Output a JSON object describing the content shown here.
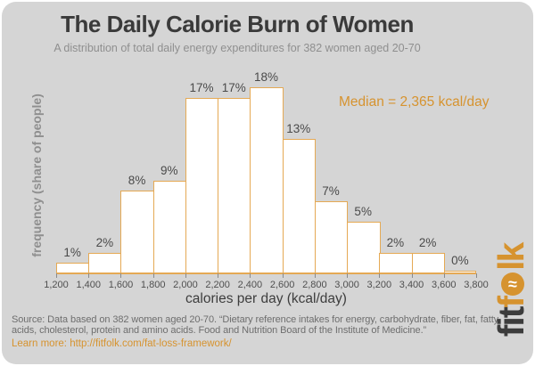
{
  "header": {
    "title": "The Daily Calorie Burn of Women",
    "subtitle": "A distribution of total daily energy expenditures for 382 women aged 20-70"
  },
  "chart_data": {
    "type": "bar",
    "title": "The Daily Calorie Burn of Women",
    "xlabel": "calories per day (kcal/day)",
    "ylabel": "frequency (share of people)",
    "bin_width_kcal": 200,
    "bin_edges": [
      "1,200",
      "1,400",
      "1,600",
      "1,800",
      "2,000",
      "2,200",
      "2,400",
      "2,600",
      "2,800",
      "3,000",
      "3,200",
      "3,400",
      "3,600",
      "3,800"
    ],
    "values_pct": [
      1,
      2,
      8,
      9,
      17,
      17,
      18,
      13,
      7,
      5,
      2,
      2,
      0
    ],
    "bar_labels": [
      "1%",
      "2%",
      "8%",
      "9%",
      "17%",
      "17%",
      "18%",
      "13%",
      "7%",
      "5%",
      "2%",
      "2%",
      "0%"
    ],
    "annotation": "Median = 2,365 kcal/day",
    "ylim": [
      0,
      18
    ],
    "grid": false,
    "legend": false
  },
  "footer": {
    "source": "Source: Data based on 382 women aged 20-70. “Dietary reference intakes for energy, carbohydrate, fiber, fat, fatty acids, cholesterol, protein and amino acids. Food and Nutrition Board of the Institute of Medicine.”",
    "learn_more_label": "Learn more:",
    "learn_more_url": "http://fitfolk.com/fat-loss-framework/"
  },
  "logo": {
    "dark": "fit",
    "orange_f": "f",
    "o_symbol": "≈",
    "orange_lk": "lk"
  },
  "colors": {
    "background": "#d5d5d5",
    "accent_orange": "#d6932f",
    "bar_border": "#e5a954",
    "bar_fill": "#ffffff",
    "title_text": "#3a3a3a",
    "muted_text": "#8f8f8f",
    "source_text": "#6e6e6e"
  }
}
